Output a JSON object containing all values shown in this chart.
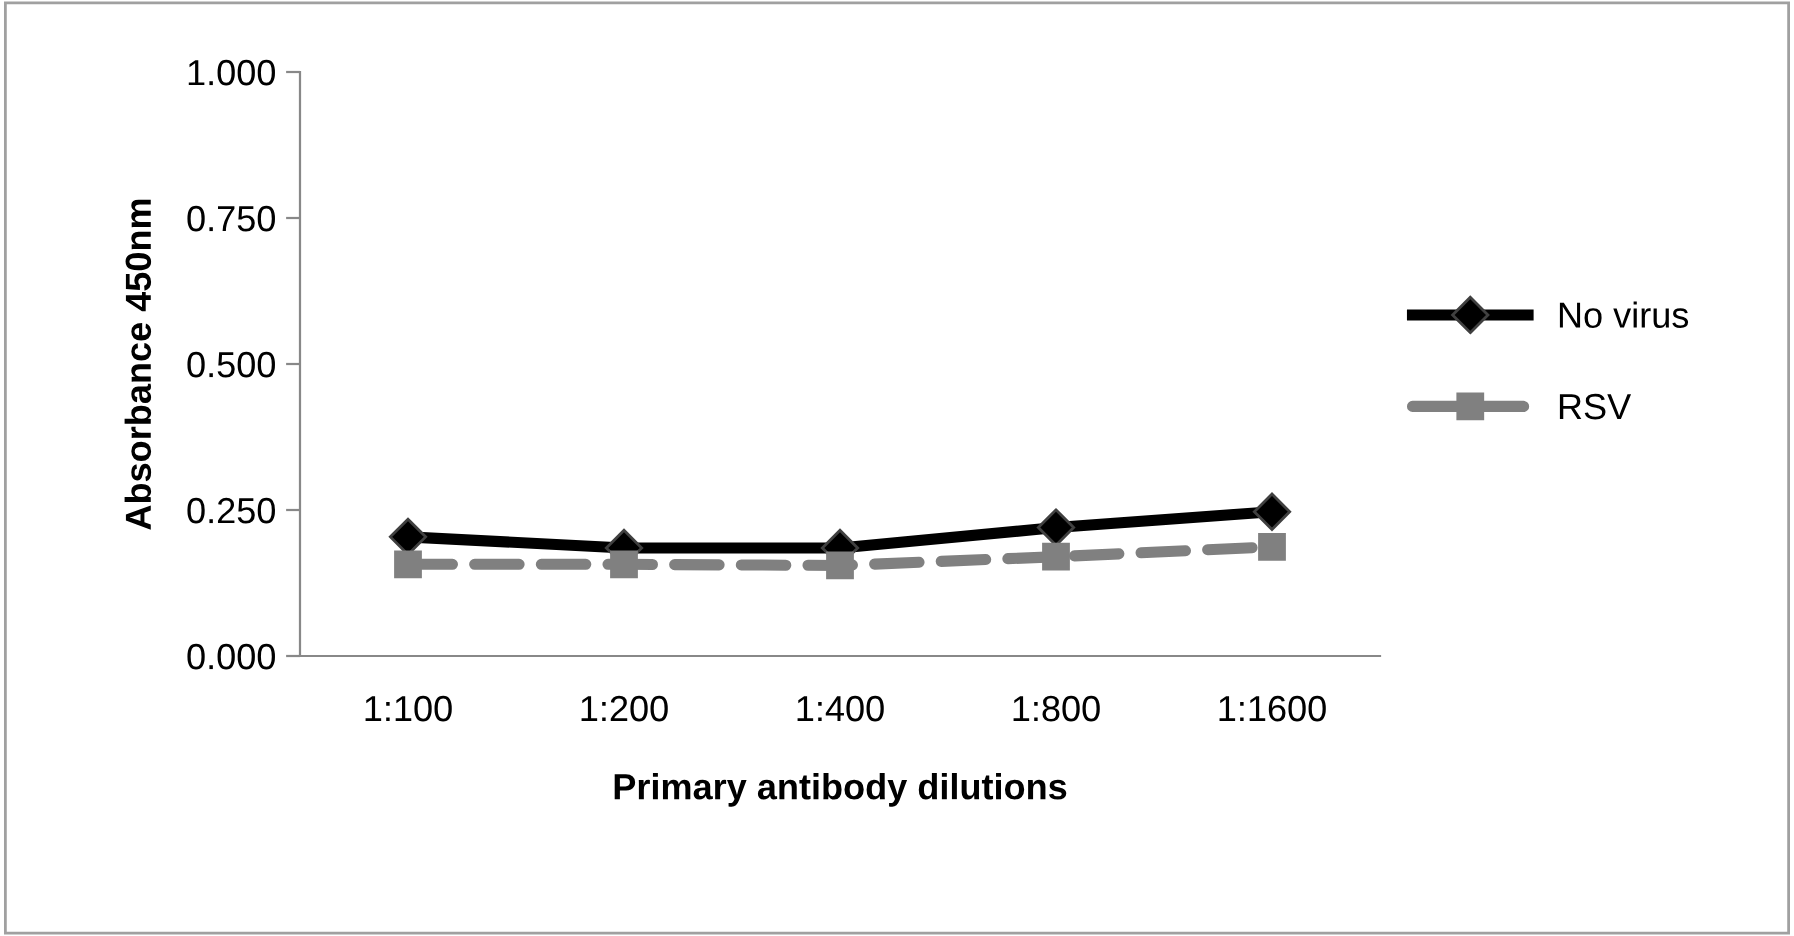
{
  "chart_data": {
    "type": "line",
    "xlabel": "Primary antibody dilutions",
    "ylabel": "Absorbance 450nm",
    "categories": [
      "1:100",
      "1:200",
      "1:400",
      "1:800",
      "1:1600"
    ],
    "series": [
      {
        "name": "No virus",
        "color": "#000000",
        "marker": "diamond",
        "line_style": "solid",
        "values": [
          0.204,
          0.185,
          0.185,
          0.22,
          0.247
        ]
      },
      {
        "name": "RSV",
        "color": "#808080",
        "marker": "square",
        "line_style": "dashed",
        "values": [
          0.157,
          0.157,
          0.155,
          0.17,
          0.187
        ]
      }
    ],
    "ylim": [
      0,
      1
    ],
    "yticks": [
      {
        "value": 0,
        "label": "0.000"
      },
      {
        "value": 0.25,
        "label": "0.250"
      },
      {
        "value": 0.5,
        "label": "0.500"
      },
      {
        "value": 0.75,
        "label": "0.750"
      },
      {
        "value": 1,
        "label": "1.000"
      }
    ],
    "grid": false,
    "legend": "right"
  }
}
